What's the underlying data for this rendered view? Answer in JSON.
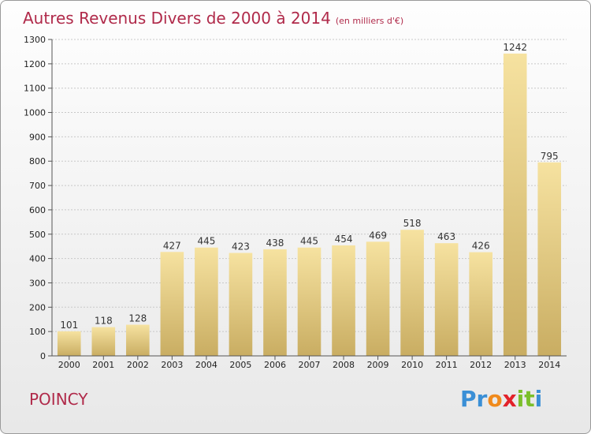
{
  "title": "Autres Revenus Divers de 2000 à 2014",
  "subtitle": "(en milliers d'€)",
  "location": "POINCY",
  "logo": {
    "letters": [
      "P",
      "r",
      "o",
      "x",
      "i",
      "t",
      "i"
    ],
    "colors": [
      "#3a8fd6",
      "#3a8fd6",
      "#f08a1c",
      "#e2222a",
      "#7bbf2b",
      "#7bbf2b",
      "#3a8fd6"
    ]
  },
  "colors": {
    "bar_light": "#f6e2a0",
    "bar_dark": "#c9ad62",
    "accent": "#b02a4a"
  },
  "chart_data": {
    "type": "bar",
    "title": "Autres Revenus Divers de 2000 à 2014",
    "subtitle": "(en milliers d'€)",
    "categories": [
      "2000",
      "2001",
      "2002",
      "2003",
      "2004",
      "2005",
      "2006",
      "2007",
      "2008",
      "2009",
      "2010",
      "2011",
      "2012",
      "2013",
      "2014"
    ],
    "values": [
      101,
      118,
      128,
      427,
      445,
      423,
      438,
      445,
      454,
      469,
      518,
      463,
      426,
      1242,
      795
    ],
    "ylim": [
      0,
      1300
    ],
    "yticks": [
      0,
      100,
      200,
      300,
      400,
      500,
      600,
      700,
      800,
      900,
      1000,
      1100,
      1200,
      1300
    ],
    "grid": true,
    "xlabel": "",
    "ylabel": ""
  }
}
